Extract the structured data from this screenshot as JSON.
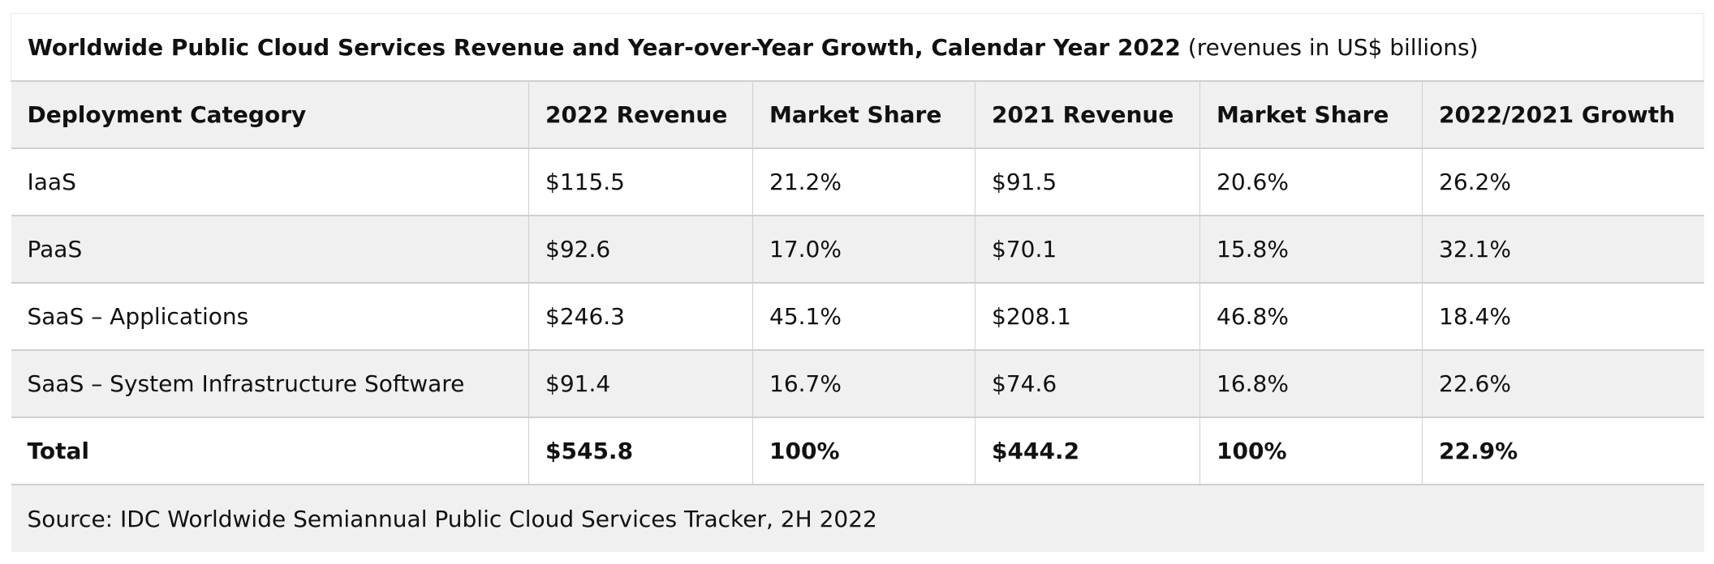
{
  "table": {
    "title_bold": "Worldwide Public Cloud Services Revenue and Year-over-Year Growth, Calendar Year 2022",
    "title_note": " (revenues in US$ billions)",
    "headers": [
      "Deployment Category",
      "2022 Revenue",
      "Market Share",
      "2021 Revenue",
      "Market Share",
      "2022/2021 Growth"
    ],
    "rows": [
      [
        "IaaS",
        "$115.5",
        "21.2%",
        "$91.5",
        "20.6%",
        "26.2%"
      ],
      [
        "PaaS",
        "$92.6",
        "17.0%",
        "$70.1",
        "15.8%",
        "32.1%"
      ],
      [
        "SaaS – Applications",
        "$246.3",
        "45.1%",
        "$208.1",
        "46.8%",
        "18.4%"
      ],
      [
        "SaaS – System Infrastructure Software",
        "$91.4",
        "16.7%",
        "$74.6",
        "16.8%",
        "22.6%"
      ],
      [
        "Total",
        "$545.8",
        "100%",
        "$444.2",
        "100%",
        "22.9%"
      ]
    ],
    "source": "Source: IDC Worldwide Semiannual Public Cloud Services Tracker, 2H 2022"
  }
}
